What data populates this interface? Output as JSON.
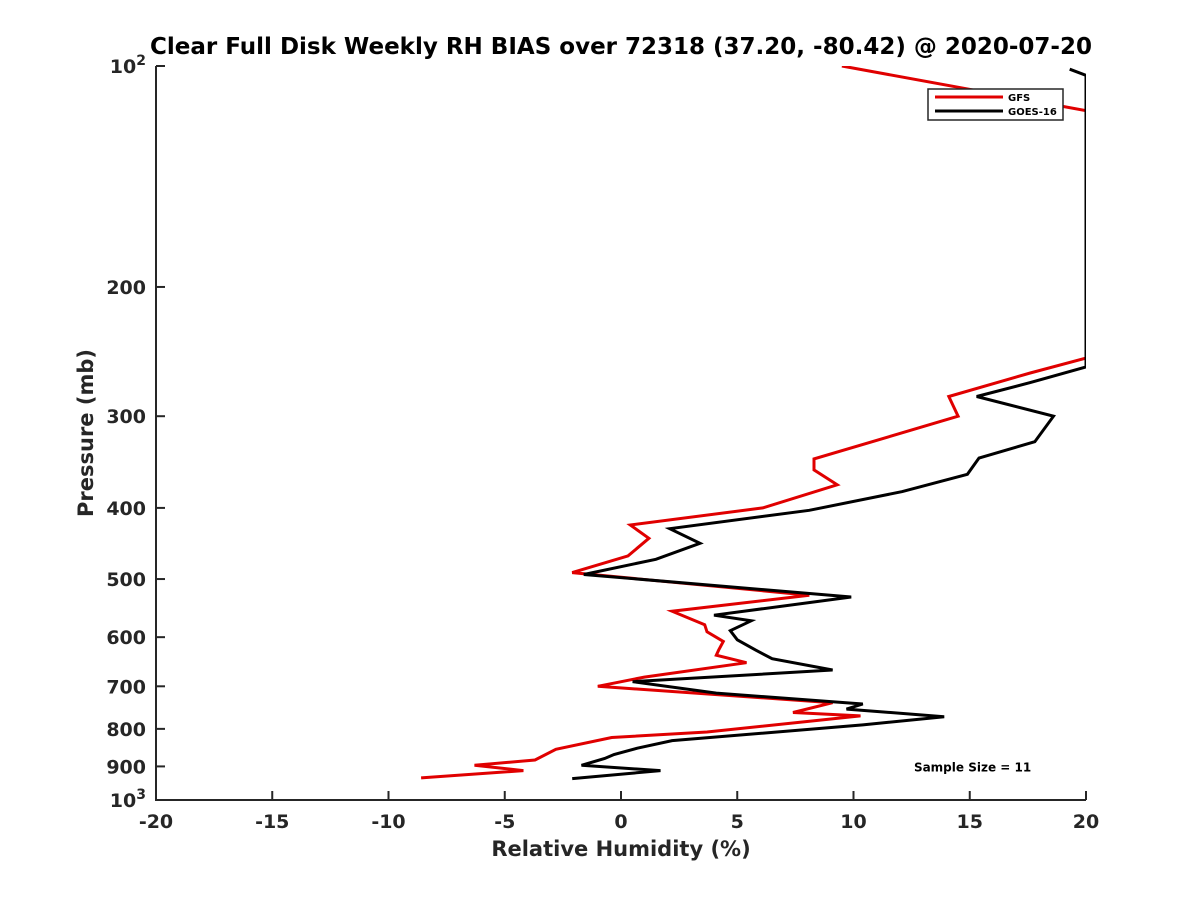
{
  "chart_data": {
    "type": "line",
    "title": "Clear Full Disk Weekly RH BIAS over 72318 (37.20, -80.42) @ 2020-07-20",
    "xlabel": "Relative Humidity (%)",
    "ylabel": "Pressure (mb)",
    "xlim": [
      -20,
      20
    ],
    "ylim": [
      100,
      1000
    ],
    "yscale": "log",
    "y_reversed": true,
    "grid": false,
    "legend_position": "top-right",
    "x_ticks": [
      -20,
      -15,
      -10,
      -5,
      0,
      5,
      10,
      15,
      20
    ],
    "x_tick_labels": [
      "-20",
      "-15",
      "-10",
      "-5",
      "0",
      "5",
      "10",
      "15",
      "20"
    ],
    "y_ticks": [
      100,
      200,
      300,
      400,
      500,
      600,
      700,
      800,
      900,
      1000
    ],
    "y_tick_labels": [
      {
        "text": "10",
        "sup": "2"
      },
      {
        "text": "200",
        "sup": ""
      },
      {
        "text": "300",
        "sup": ""
      },
      {
        "text": "400",
        "sup": ""
      },
      {
        "text": "500",
        "sup": ""
      },
      {
        "text": "600",
        "sup": ""
      },
      {
        "text": "700",
        "sup": ""
      },
      {
        "text": "800",
        "sup": ""
      },
      {
        "text": "900",
        "sup": ""
      },
      {
        "text": "10",
        "sup": "3"
      }
    ],
    "series": [
      {
        "name": "GFS",
        "color": "#e00000",
        "points": [
          [
            9.5,
            100
          ],
          [
            20,
            115
          ],
          [
            20,
            250
          ],
          [
            17.6,
            262
          ],
          [
            14.1,
            282
          ],
          [
            14.5,
            300
          ],
          [
            8.3,
            343
          ],
          [
            8.3,
            355
          ],
          [
            9.3,
            372
          ],
          [
            6.1,
            400
          ],
          [
            0.4,
            422
          ],
          [
            1.2,
            440
          ],
          [
            0.3,
            465
          ],
          [
            -2.1,
            490
          ],
          [
            8.1,
            526
          ],
          [
            2.2,
            553
          ],
          [
            3.6,
            577
          ],
          [
            3.7,
            590
          ],
          [
            4.4,
            608
          ],
          [
            4.2,
            625
          ],
          [
            4.1,
            635
          ],
          [
            5.4,
            650
          ],
          [
            1.0,
            680
          ],
          [
            -1.0,
            700
          ],
          [
            9.1,
            737
          ],
          [
            7.4,
            760
          ],
          [
            10.3,
            768
          ],
          [
            3.7,
            808
          ],
          [
            -0.4,
            822
          ],
          [
            -2.8,
            853
          ],
          [
            -3.7,
            882
          ],
          [
            -6.3,
            897
          ],
          [
            -4.2,
            912
          ],
          [
            -8.6,
            933
          ]
        ]
      },
      {
        "name": "GOES-16",
        "color": "#000000",
        "points": [
          [
            19.3,
            101
          ],
          [
            20,
            103
          ],
          [
            20,
            257
          ],
          [
            17.6,
            270
          ],
          [
            15.3,
            282
          ],
          [
            18.6,
            300
          ],
          [
            17.8,
            325
          ],
          [
            15.4,
            342
          ],
          [
            14.9,
            360
          ],
          [
            12.1,
            380
          ],
          [
            8.1,
            403
          ],
          [
            2.1,
            427
          ],
          [
            3.4,
            447
          ],
          [
            1.5,
            470
          ],
          [
            -1.6,
            493
          ],
          [
            9.9,
            529
          ],
          [
            4.0,
            560
          ],
          [
            5.6,
            570
          ],
          [
            4.7,
            588
          ],
          [
            5.0,
            605
          ],
          [
            5.8,
            625
          ],
          [
            6.5,
            642
          ],
          [
            9.1,
            665
          ],
          [
            0.5,
            690
          ],
          [
            4.1,
            715
          ],
          [
            10.4,
            740
          ],
          [
            9.7,
            752
          ],
          [
            13.9,
            770
          ],
          [
            10.4,
            790
          ],
          [
            2.2,
            830
          ],
          [
            0.7,
            850
          ],
          [
            -0.3,
            867
          ],
          [
            -0.7,
            878
          ],
          [
            -1.7,
            897
          ],
          [
            1.7,
            912
          ],
          [
            -2.1,
            935
          ]
        ]
      }
    ],
    "annotations": [
      {
        "text": "Sample Size = 11",
        "x": 12.6,
        "y": 900
      }
    ]
  }
}
